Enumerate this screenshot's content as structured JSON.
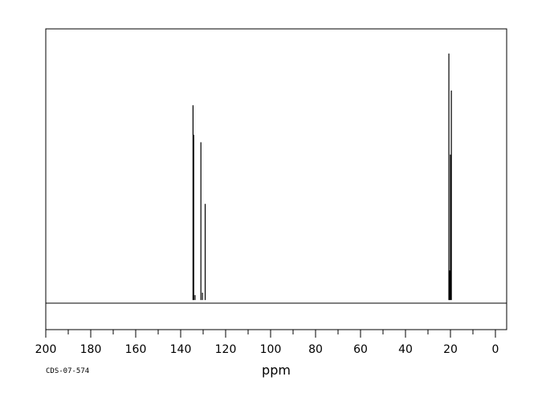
{
  "chart_data": {
    "type": "line",
    "title": "",
    "xlabel": "ppm",
    "ylabel": "",
    "x_reversed": true,
    "xlim": [
      -5,
      200
    ],
    "ylim": [
      -0.12,
      1.1
    ],
    "x_ticks_labeled": [
      200,
      180,
      160,
      140,
      120,
      100,
      80,
      60,
      40,
      20,
      0
    ],
    "x_ticks_minor": [
      190,
      170,
      150,
      130,
      110,
      90,
      70,
      50,
      30,
      10
    ],
    "grid": false,
    "legend": "none",
    "series": [
      {
        "peaks": [
          {
            "ppm": 134.5,
            "height": 0.79
          },
          {
            "ppm": 134.2,
            "height": 0.67
          },
          {
            "ppm": 133.6,
            "height": 0.02
          },
          {
            "ppm": 131.0,
            "height": 0.64
          },
          {
            "ppm": 130.3,
            "height": 0.03
          },
          {
            "ppm": 129.1,
            "height": 0.39
          },
          {
            "ppm": 20.7,
            "height": 1.0
          },
          {
            "ppm": 20.4,
            "height": 0.12
          },
          {
            "ppm": 20.0,
            "height": 0.59
          },
          {
            "ppm": 19.6,
            "height": 0.85
          }
        ]
      }
    ],
    "color": "#000000"
  },
  "footer": {
    "code": "CDS-07-574"
  }
}
